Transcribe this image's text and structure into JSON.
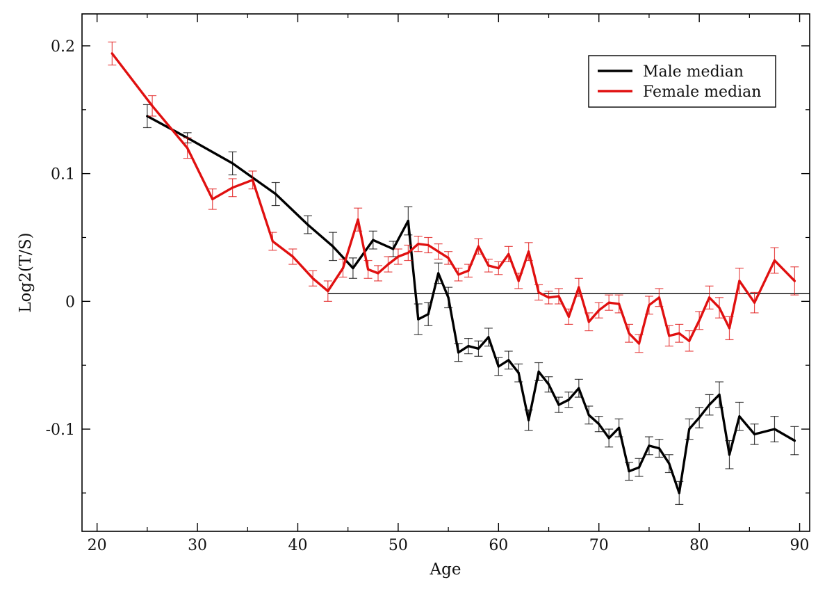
{
  "chart_data": {
    "type": "line",
    "title": "",
    "xlabel": "Age",
    "ylabel": "Log2(T/S)",
    "xlim": [
      18.5,
      91
    ],
    "ylim": [
      -0.18,
      0.225
    ],
    "xticks": [
      20,
      30,
      40,
      50,
      60,
      70,
      80,
      90
    ],
    "xtick_labels": [
      "20",
      "30",
      "40",
      "50",
      "60",
      "70",
      "80",
      "90"
    ],
    "yticks": [
      -0.1,
      0,
      0.1,
      0.2
    ],
    "ytick_labels": [
      "-0.1",
      "0",
      "0.1",
      "0.2"
    ],
    "grid": false,
    "legend_position": "top-right",
    "reference_line": {
      "y": 0.006,
      "x_from": 43,
      "x_to": 91
    },
    "series": [
      {
        "name": "Male median",
        "color": "#000000",
        "points": [
          [
            25,
            0.145,
            0.009
          ],
          [
            29,
            0.128,
            0.004
          ],
          [
            33.5,
            0.108,
            0.009
          ],
          [
            37.8,
            0.084,
            0.009
          ],
          [
            41,
            0.06,
            0.007
          ],
          [
            43.5,
            0.043,
            0.011
          ],
          [
            45.5,
            0.026,
            0.008
          ],
          [
            47.5,
            0.048,
            0.007
          ],
          [
            49.5,
            0.041,
            0.006
          ],
          [
            51,
            0.063,
            0.011
          ],
          [
            52,
            -0.014,
            0.012
          ],
          [
            53,
            -0.01,
            0.009
          ],
          [
            54,
            0.022,
            0.008
          ],
          [
            55,
            0.003,
            0.008
          ],
          [
            56,
            -0.04,
            0.007
          ],
          [
            57,
            -0.035,
            0.006
          ],
          [
            58,
            -0.037,
            0.006
          ],
          [
            59,
            -0.028,
            0.007
          ],
          [
            60,
            -0.051,
            0.007
          ],
          [
            61,
            -0.046,
            0.007
          ],
          [
            62,
            -0.056,
            0.007
          ],
          [
            63,
            -0.093,
            0.008
          ],
          [
            64,
            -0.055,
            0.007
          ],
          [
            65,
            -0.065,
            0.006
          ],
          [
            66,
            -0.081,
            0.006
          ],
          [
            67,
            -0.077,
            0.006
          ],
          [
            68,
            -0.068,
            0.007
          ],
          [
            69,
            -0.089,
            0.007
          ],
          [
            70,
            -0.096,
            0.006
          ],
          [
            71,
            -0.107,
            0.007
          ],
          [
            72,
            -0.099,
            0.007
          ],
          [
            73,
            -0.133,
            0.007
          ],
          [
            74,
            -0.13,
            0.007
          ],
          [
            75,
            -0.113,
            0.007
          ],
          [
            76,
            -0.115,
            0.007
          ],
          [
            77,
            -0.127,
            0.007
          ],
          [
            78,
            -0.15,
            0.009
          ],
          [
            79,
            -0.1,
            0.008
          ],
          [
            80,
            -0.091,
            0.008
          ],
          [
            81,
            -0.081,
            0.008
          ],
          [
            82,
            -0.073,
            0.01
          ],
          [
            83,
            -0.12,
            0.011
          ],
          [
            84,
            -0.09,
            0.011
          ],
          [
            85.5,
            -0.104,
            0.008
          ],
          [
            87.5,
            -0.1,
            0.01
          ],
          [
            89.5,
            -0.109,
            0.011
          ]
        ]
      },
      {
        "name": "Female median",
        "color": "#e01010",
        "points": [
          [
            21.5,
            0.194,
            0.009
          ],
          [
            25.5,
            0.153,
            0.008
          ],
          [
            29,
            0.12,
            0.008
          ],
          [
            31.5,
            0.08,
            0.008
          ],
          [
            33.5,
            0.089,
            0.007
          ],
          [
            35.5,
            0.095,
            0.007
          ],
          [
            37.5,
            0.047,
            0.007
          ],
          [
            39.5,
            0.035,
            0.006
          ],
          [
            41.5,
            0.018,
            0.006
          ],
          [
            43,
            0.008,
            0.008
          ],
          [
            44.5,
            0.026,
            0.007
          ],
          [
            46,
            0.064,
            0.009
          ],
          [
            47,
            0.025,
            0.007
          ],
          [
            48,
            0.022,
            0.006
          ],
          [
            49,
            0.029,
            0.006
          ],
          [
            50,
            0.035,
            0.006
          ],
          [
            51,
            0.038,
            0.006
          ],
          [
            52,
            0.045,
            0.006
          ],
          [
            53,
            0.044,
            0.006
          ],
          [
            54,
            0.039,
            0.006
          ],
          [
            55,
            0.034,
            0.005
          ],
          [
            56,
            0.021,
            0.005
          ],
          [
            57,
            0.024,
            0.005
          ],
          [
            58,
            0.043,
            0.006
          ],
          [
            59,
            0.028,
            0.005
          ],
          [
            60,
            0.026,
            0.005
          ],
          [
            61,
            0.037,
            0.006
          ],
          [
            62,
            0.016,
            0.006
          ],
          [
            63,
            0.039,
            0.007
          ],
          [
            64,
            0.007,
            0.006
          ],
          [
            65,
            0.003,
            0.005
          ],
          [
            66,
            0.004,
            0.006
          ],
          [
            67,
            -0.012,
            0.006
          ],
          [
            68,
            0.011,
            0.007
          ],
          [
            69,
            -0.016,
            0.007
          ],
          [
            70,
            -0.007,
            0.006
          ],
          [
            71,
            -0.001,
            0.006
          ],
          [
            72,
            -0.002,
            0.007
          ],
          [
            73,
            -0.025,
            0.007
          ],
          [
            74,
            -0.033,
            0.007
          ],
          [
            75,
            -0.003,
            0.007
          ],
          [
            76,
            0.003,
            0.007
          ],
          [
            77,
            -0.027,
            0.008
          ],
          [
            78,
            -0.025,
            0.007
          ],
          [
            79,
            -0.031,
            0.008
          ],
          [
            80,
            -0.015,
            0.007
          ],
          [
            81,
            0.003,
            0.009
          ],
          [
            82,
            -0.005,
            0.008
          ],
          [
            83,
            -0.021,
            0.009
          ],
          [
            84,
            0.016,
            0.01
          ],
          [
            85.5,
            -0.001,
            0.008
          ],
          [
            87.5,
            0.032,
            0.01
          ],
          [
            89.5,
            0.016,
            0.011
          ]
        ]
      }
    ]
  }
}
